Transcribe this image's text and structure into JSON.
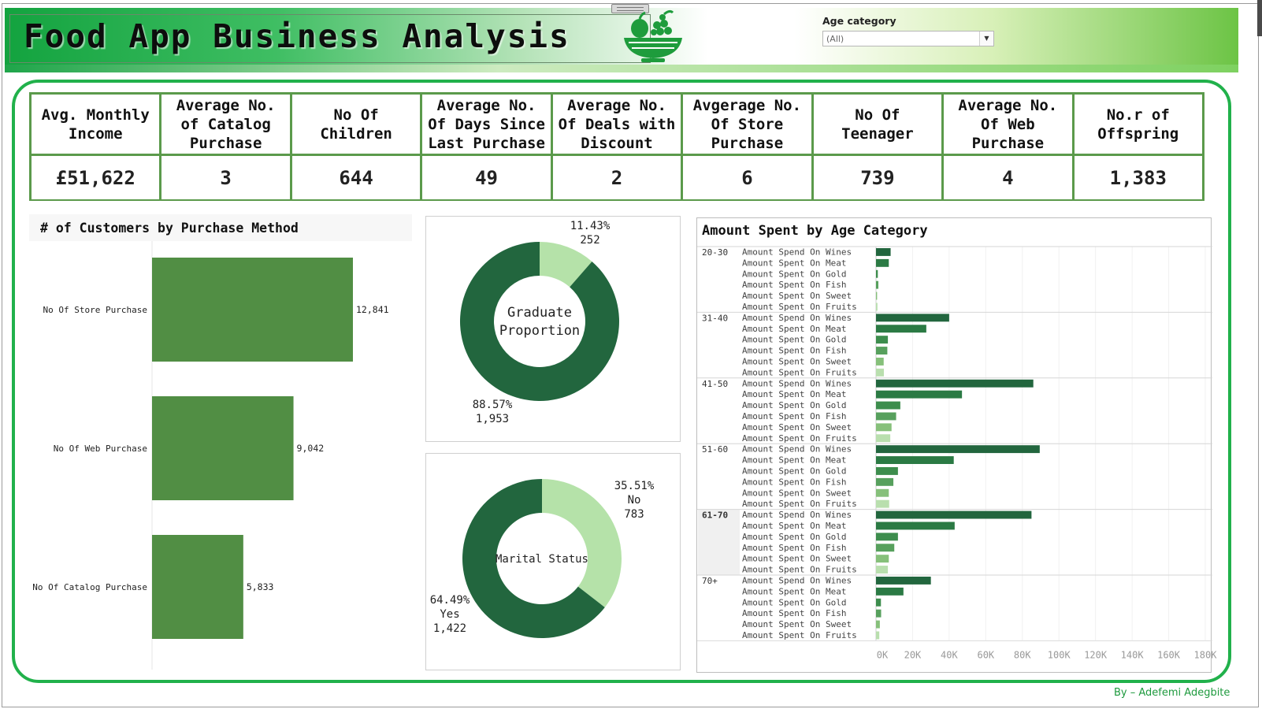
{
  "header": {
    "title": "Food App Business Analysis",
    "logo_icon": "fruit-basket-icon",
    "filter_label": "Age category",
    "filter_value": "(All)"
  },
  "kpis": [
    {
      "label": "Avg. Monthly Income",
      "value": "£51,622"
    },
    {
      "label": "Average No. of Catalog Purchase",
      "value": "3"
    },
    {
      "label": "No Of Children",
      "value": "644"
    },
    {
      "label": "Average No. Of Days Since Last Purchase",
      "value": "49"
    },
    {
      "label": "Average No. Of Deals with Discount",
      "value": "2"
    },
    {
      "label": "Avgerage No. Of Store Purchase",
      "value": "6"
    },
    {
      "label": "No Of Teenager",
      "value": "739"
    },
    {
      "label": "Average No. Of Web Purchase",
      "value": "4"
    },
    {
      "label": "No.r of Offspring",
      "value": "1,383"
    }
  ],
  "footer": {
    "credit": "By – Adefemi Adegbite"
  },
  "colors": {
    "brand_green": "#21b14b",
    "bar_green": "#518e44",
    "dark_green": "#22663e",
    "light_green": "#b5e2a9"
  },
  "chart_data": [
    {
      "type": "bar",
      "title": "# of Customers by Purchase Method",
      "orientation": "horizontal",
      "categories": [
        "No Of Store Purchase",
        "No Of Web Purchase",
        "No Of Catalog Purchase"
      ],
      "values": [
        12841,
        9042,
        5833
      ],
      "data_labels": [
        "12,841",
        "9,042",
        "5,833"
      ]
    },
    {
      "type": "pie",
      "title": "Graduate Proportion",
      "donut": true,
      "slices": [
        {
          "value": 252,
          "percent": 11.43,
          "percent_label": "11.43%",
          "count_label": "252",
          "color": "#b5e2a9"
        },
        {
          "value": 1953,
          "percent": 88.57,
          "percent_label": "88.57%",
          "count_label": "1,953",
          "color": "#22663e"
        }
      ]
    },
    {
      "type": "pie",
      "title": "Marital Status",
      "donut": true,
      "slices": [
        {
          "name": "No",
          "value": 783,
          "percent": 35.51,
          "percent_label": "35.51%",
          "count_label": "783",
          "color": "#b5e2a9"
        },
        {
          "name": "Yes",
          "value": 1422,
          "percent": 64.49,
          "percent_label": "64.49%",
          "count_label": "1,422",
          "color": "#22663e"
        }
      ]
    },
    {
      "type": "bar",
      "title": "Amount Spent by Age Category",
      "orientation": "horizontal",
      "measures": [
        "Amount Spend On Wines",
        "Amount Spent On Meat",
        "Amount Spent On Gold",
        "Amount Spent On Fish",
        "Amount Spent On Sweet",
        "Amount Spent On Fruits"
      ],
      "measure_colors": [
        "#22663e",
        "#2b7a44",
        "#3d8d4d",
        "#57a05d",
        "#86c07a",
        "#b9dfae"
      ],
      "groups": [
        {
          "name": "20-30",
          "values": [
            8000,
            7000,
            1000,
            1300,
            600,
            800
          ]
        },
        {
          "name": "31-40",
          "values": [
            40000,
            27500,
            6500,
            6200,
            4200,
            4300
          ]
        },
        {
          "name": "41-50",
          "values": [
            86000,
            47000,
            13300,
            11000,
            8500,
            7800
          ]
        },
        {
          "name": "51-60",
          "values": [
            89500,
            42500,
            12000,
            9500,
            7000,
            7200
          ]
        },
        {
          "name": "61-70",
          "values": [
            85000,
            43000,
            12000,
            10000,
            7000,
            6500
          ]
        },
        {
          "name": "70+",
          "values": [
            30000,
            15000,
            2700,
            2800,
            2100,
            1800
          ]
        }
      ],
      "x_ticks": [
        "0K",
        "20K",
        "40K",
        "60K",
        "80K",
        "100K",
        "120K",
        "140K",
        "160K",
        "180K"
      ],
      "xlim": [
        0,
        180000
      ],
      "grid": true
    }
  ]
}
